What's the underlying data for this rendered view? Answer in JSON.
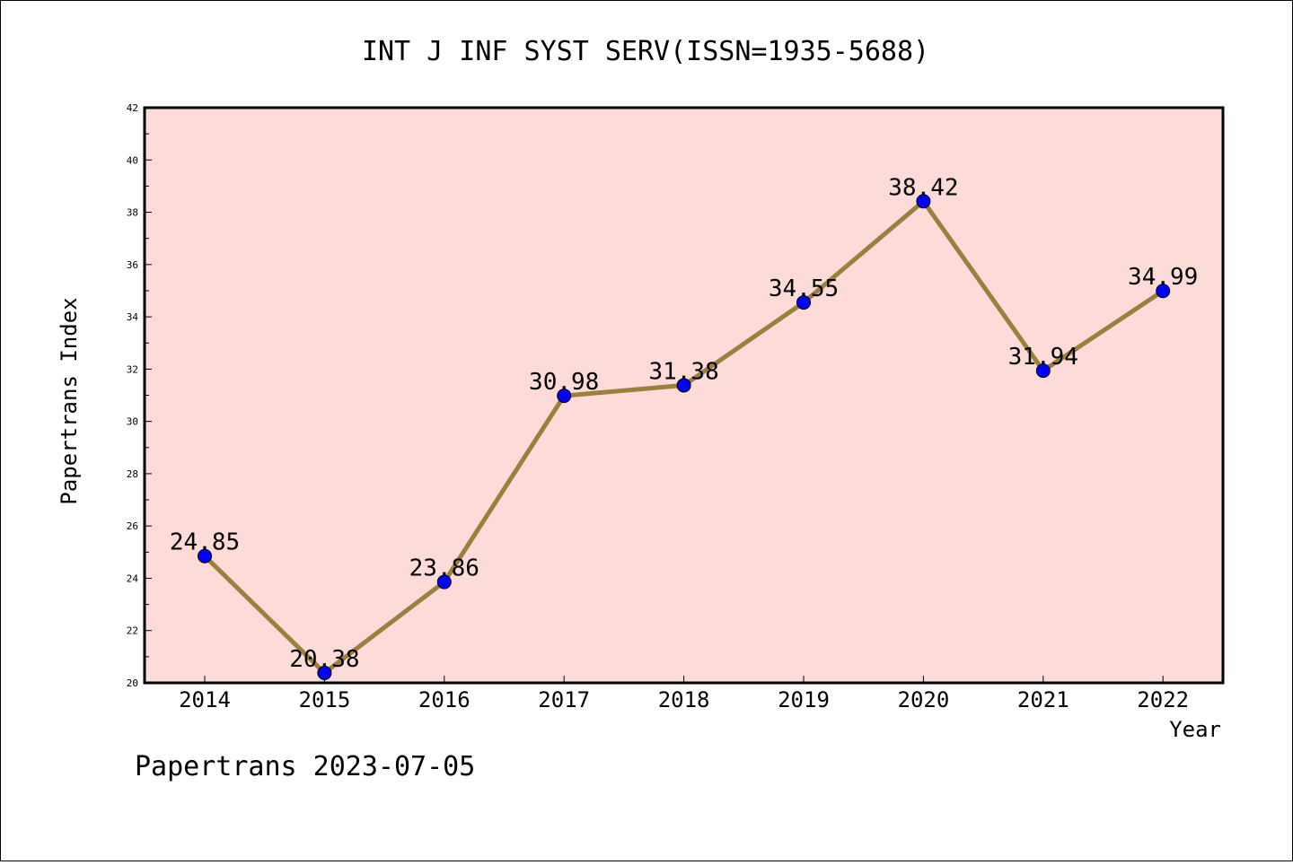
{
  "chart_data": {
    "type": "line",
    "title": "INT J INF SYST SERV(ISSN=1935-5688)",
    "xlabel": "Year",
    "ylabel": "Papertrans Index",
    "categories": [
      "2014",
      "2015",
      "2016",
      "2017",
      "2018",
      "2019",
      "2020",
      "2021",
      "2022"
    ],
    "series": [
      {
        "values": [
          24.85,
          20.38,
          23.86,
          30.98,
          31.38,
          34.55,
          38.42,
          31.94,
          34.99
        ]
      }
    ],
    "data_labels": [
      "24.85",
      "20.38",
      "23.86",
      "30.98",
      "31.38",
      "34.55",
      "38.42",
      "31.94",
      "34.99"
    ],
    "ylim": [
      20,
      42
    ],
    "yticks": [
      20,
      22,
      24,
      26,
      28,
      30,
      32,
      34,
      36,
      38,
      40,
      42
    ],
    "ytick_labels": [
      "20",
      "22",
      "24",
      "26",
      "28",
      "30",
      "32",
      "34",
      "36",
      "38",
      "40",
      "42"
    ],
    "grid": false,
    "colors": {
      "plot_background": "#fddbd8",
      "line": "#9b7f3c",
      "marker": "#0000ff"
    }
  },
  "footer": "Papertrans 2023-07-05"
}
